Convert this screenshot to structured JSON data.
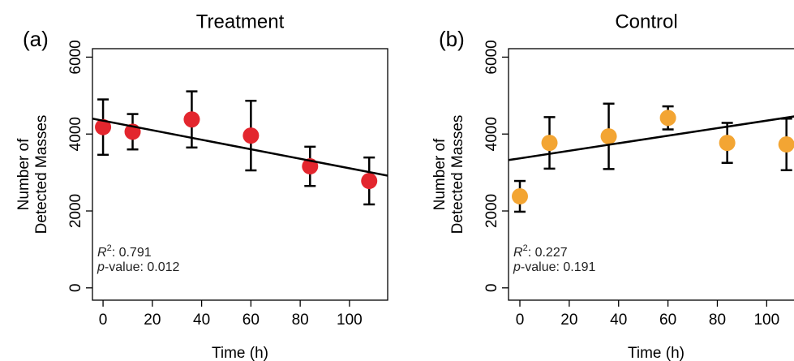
{
  "chart_data": [
    {
      "type": "scatter",
      "title": "Treatment",
      "panel_label": "(a)",
      "ylabel": [
        "Number of",
        "Detected Masses"
      ],
      "xlabel": "Time (h)",
      "series": [
        {
          "color": "#e3262e",
          "x": [
            0,
            12,
            36,
            60,
            84,
            108
          ],
          "values": [
            4180,
            4060,
            4380,
            3960,
            3160,
            2780
          ],
          "errors": [
            720,
            460,
            730,
            905,
            510,
            610
          ]
        }
      ],
      "fit": {
        "x": [
          -4.3,
          115.5
        ],
        "values": [
          4400,
          2917
        ]
      },
      "r_squared": {
        "symbol": "R",
        "power": "2",
        "text": ":  0.791"
      },
      "p_value": {
        "symbol": "p",
        "text": "-value: 0.012"
      },
      "xlim": [
        -4.3,
        115.5
      ],
      "xticks": [
        0,
        20,
        40,
        60,
        80,
        100
      ],
      "ylim": [
        -320,
        6220
      ],
      "yticks": [
        0,
        2000,
        4000,
        6000
      ]
    },
    {
      "type": "scatter",
      "title": "Control",
      "panel_label": "(b)",
      "ylabel": [
        "Number of",
        "Detected Masses"
      ],
      "xlabel": "Time (h)",
      "series": [
        {
          "color": "#f3a533",
          "x": [
            0,
            12,
            36,
            60,
            84,
            108
          ],
          "values": [
            2380,
            3770,
            3940,
            4420,
            3770,
            3730
          ],
          "errors": [
            400,
            670,
            850,
            300,
            520,
            670
          ]
        }
      ],
      "fit": {
        "x": [
          -4.6,
          115
        ],
        "values": [
          3323,
          4496
        ]
      },
      "r_squared": {
        "symbol": "R",
        "power": "2",
        "text": ":  0.227"
      },
      "p_value": {
        "symbol": "p",
        "text": "-value: 0.191"
      },
      "xlim": [
        -4.6,
        115
      ],
      "xticks": [
        0,
        20,
        40,
        60,
        80,
        100
      ],
      "ylim": [
        -320,
        6220
      ],
      "yticks": [
        0,
        2000,
        4000,
        6000
      ]
    }
  ]
}
